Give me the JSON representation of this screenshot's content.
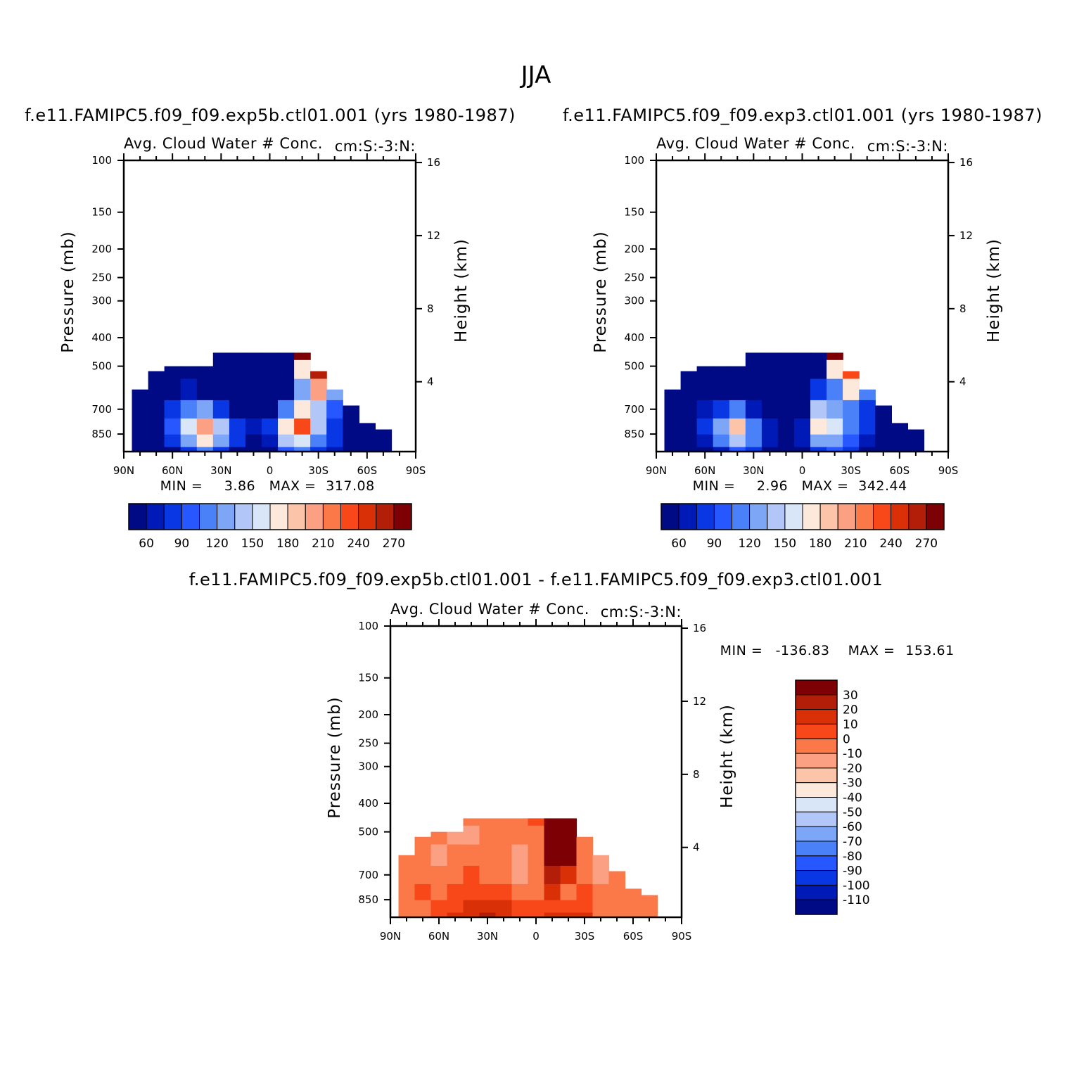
{
  "page": {
    "title": "JJA",
    "left_case_title": "f.e11.FAMIPC5.f09_f09.exp5b.ctl01.001 (yrs 1980-1987)",
    "right_case_title": "f.e11.FAMIPC5.f09_f09.exp3.ctl01.001 (yrs 1980-1987)",
    "diff_title": "f.e11.FAMIPC5.f09_f09.exp5b.ctl01.001 - f.e11.FAMIPC5.f09_f09.exp3.ctl01.001"
  },
  "colors": {
    "axis": "#000000",
    "background": "#ffffff",
    "palette": [
      "#000a85",
      "#001ab8",
      "#0a37e4",
      "#2757ff",
      "#4a80f8",
      "#7ea6f7",
      "#b2c7f7",
      "#d9e6f8",
      "#fde8dc",
      "#fcc5aa",
      "#fca084",
      "#fb7848",
      "#f8481a",
      "#d93008",
      "#b21e08",
      "#7d0004"
    ]
  },
  "chart_data": [
    {
      "id": "panel_exp5b",
      "type": "heatmap",
      "title": "Avg. Cloud Water # Conc.",
      "units": "cm:S:-3:N:",
      "xlabel": "",
      "ylabel": "Pressure (mb)",
      "ylabel_right": "Height (km)",
      "x_ticks": [
        "90N",
        "60N",
        "30N",
        "0",
        "30S",
        "60S",
        "90S"
      ],
      "x_lim": [
        90,
        -90
      ],
      "y_ticks": [
        100,
        150,
        200,
        250,
        300,
        400,
        500,
        700,
        850
      ],
      "y_lim": [
        100,
        975
      ],
      "y_scale": "log",
      "y_right_ticks": [
        16,
        12,
        8,
        4
      ],
      "min_label": "MIN =",
      "min_value": "3.86",
      "max_label": "MAX =",
      "max_value": "317.08",
      "colorbar_orientation": "horizontal",
      "colorbar_labels": [
        "60",
        "90",
        "120",
        "150",
        "180",
        "210",
        "240",
        "270"
      ],
      "field": {
        "lat": [
          90,
          80,
          70,
          60,
          50,
          40,
          30,
          20,
          10,
          0,
          -10,
          -20,
          -30,
          -40,
          -50,
          -60,
          -70,
          -80,
          -90
        ],
        "top_pressure": [
          null,
          600,
          520,
          500,
          500,
          500,
          450,
          450,
          450,
          450,
          450,
          450,
          520,
          600,
          680,
          780,
          820,
          null,
          null
        ],
        "columns": [
          [
            0,
            0,
            0,
            0,
            0,
            0,
            0
          ],
          [
            15,
            15,
            15,
            15,
            15,
            15,
            15
          ],
          [
            20,
            35,
            40,
            30,
            25,
            20,
            20
          ],
          [
            40,
            60,
            80,
            60,
            40,
            30,
            30
          ],
          [
            60,
            110,
            140,
            90,
            50,
            30,
            20
          ],
          [
            90,
            150,
            190,
            110,
            40,
            20,
            10
          ],
          [
            70,
            110,
            130,
            60,
            20,
            10,
            10
          ],
          [
            40,
            60,
            70,
            25,
            15,
            10,
            10
          ],
          [
            30,
            35,
            45,
            20,
            15,
            10,
            10
          ],
          [
            40,
            50,
            60,
            30,
            20,
            15,
            15
          ],
          [
            80,
            120,
            160,
            90,
            40,
            20,
            20
          ],
          [
            90,
            140,
            210,
            160,
            110,
            150,
            260
          ],
          [
            70,
            90,
            120,
            120,
            180,
            240,
            310
          ],
          [
            50,
            60,
            70,
            80,
            110,
            130,
            120
          ],
          [
            30,
            35,
            40,
            40,
            30,
            20,
            20
          ],
          [
            20,
            25,
            25,
            25,
            20,
            15,
            15
          ],
          [
            15,
            15,
            15,
            15,
            15,
            15,
            15
          ],
          [
            0,
            0,
            0,
            0,
            0,
            0,
            0
          ],
          [
            0,
            0,
            0,
            0,
            0,
            0,
            0
          ]
        ],
        "col_pressures": [
          975,
          900,
          800,
          700,
          600,
          500,
          450
        ]
      }
    },
    {
      "id": "panel_exp3",
      "type": "heatmap",
      "title": "Avg. Cloud Water # Conc.",
      "units": "cm:S:-3:N:",
      "xlabel": "",
      "ylabel": "Pressure (mb)",
      "ylabel_right": "Height (km)",
      "x_ticks": [
        "90N",
        "60N",
        "30N",
        "0",
        "30S",
        "60S",
        "90S"
      ],
      "x_lim": [
        90,
        -90
      ],
      "y_ticks": [
        100,
        150,
        200,
        250,
        300,
        400,
        500,
        700,
        850
      ],
      "y_lim": [
        100,
        975
      ],
      "y_scale": "log",
      "y_right_ticks": [
        16,
        12,
        8,
        4
      ],
      "min_label": "MIN =",
      "min_value": "2.96",
      "max_label": "MAX =",
      "max_value": "342.44",
      "colorbar_orientation": "horizontal",
      "colorbar_labels": [
        "60",
        "90",
        "120",
        "150",
        "180",
        "210",
        "240",
        "270"
      ],
      "field": {
        "lat": [
          90,
          80,
          70,
          60,
          50,
          40,
          30,
          20,
          10,
          0,
          -10,
          -20,
          -30,
          -40,
          -50,
          -60,
          -70,
          -80,
          -90
        ],
        "top_pressure": [
          null,
          600,
          520,
          500,
          500,
          500,
          450,
          450,
          450,
          450,
          450,
          450,
          520,
          600,
          680,
          780,
          820,
          null,
          null
        ],
        "columns": [
          [
            0,
            0,
            0,
            0,
            0,
            0,
            0
          ],
          [
            15,
            15,
            15,
            15,
            15,
            15,
            15
          ],
          [
            15,
            25,
            30,
            25,
            20,
            15,
            15
          ],
          [
            35,
            50,
            60,
            45,
            30,
            20,
            20
          ],
          [
            50,
            90,
            110,
            70,
            40,
            25,
            15
          ],
          [
            80,
            130,
            170,
            90,
            30,
            15,
            10
          ],
          [
            60,
            90,
            100,
            50,
            15,
            10,
            10
          ],
          [
            35,
            50,
            55,
            20,
            10,
            10,
            10
          ],
          [
            25,
            30,
            35,
            15,
            10,
            10,
            10
          ],
          [
            35,
            45,
            50,
            25,
            15,
            10,
            10
          ],
          [
            70,
            110,
            150,
            130,
            60,
            20,
            20
          ],
          [
            80,
            110,
            140,
            110,
            90,
            160,
            300
          ],
          [
            60,
            80,
            100,
            100,
            150,
            220,
            340
          ],
          [
            40,
            50,
            60,
            70,
            100,
            120,
            110
          ],
          [
            25,
            30,
            35,
            35,
            25,
            15,
            15
          ],
          [
            15,
            20,
            20,
            20,
            15,
            10,
            10
          ],
          [
            15,
            15,
            15,
            15,
            15,
            15,
            15
          ],
          [
            0,
            0,
            0,
            0,
            0,
            0,
            0
          ],
          [
            0,
            0,
            0,
            0,
            0,
            0,
            0
          ]
        ],
        "col_pressures": [
          975,
          900,
          800,
          700,
          600,
          500,
          450
        ]
      }
    },
    {
      "id": "panel_diff",
      "type": "heatmap",
      "title": "Avg. Cloud Water # Conc.",
      "units": "cm:S:-3:N:",
      "xlabel": "",
      "ylabel": "Pressure (mb)",
      "ylabel_right": "Height (km)",
      "x_ticks": [
        "90N",
        "60N",
        "30N",
        "0",
        "30S",
        "60S",
        "90S"
      ],
      "x_lim": [
        90,
        -90
      ],
      "y_ticks": [
        100,
        150,
        200,
        250,
        300,
        400,
        500,
        700,
        850
      ],
      "y_lim": [
        100,
        975
      ],
      "y_scale": "log",
      "y_right_ticks": [
        16,
        12,
        8,
        4
      ],
      "min_label": "MIN =",
      "min_value": "-136.83",
      "max_label": "MAX =",
      "max_value": "153.61",
      "colorbar_orientation": "vertical",
      "colorbar_labels": [
        "30",
        "20",
        "10",
        "0",
        "-10",
        "-20",
        "-30",
        "-40",
        "-50",
        "-60",
        "-70",
        "-80",
        "-90",
        "-100",
        "-110"
      ],
      "field": {
        "lat": [
          90,
          80,
          70,
          60,
          50,
          40,
          30,
          20,
          10,
          0,
          -10,
          -20,
          -30,
          -40,
          -50,
          -60,
          -70,
          -80,
          -90
        ],
        "top_pressure": [
          null,
          600,
          520,
          500,
          500,
          450,
          450,
          450,
          450,
          450,
          450,
          450,
          520,
          600,
          680,
          780,
          820,
          null,
          null
        ],
        "columns": [
          [
            0,
            0,
            0,
            0,
            0,
            0,
            0
          ],
          [
            -10,
            -10,
            -10,
            -10,
            -10,
            -10,
            -10
          ],
          [
            -5,
            -5,
            0,
            -5,
            -10,
            -5,
            -5
          ],
          [
            5,
            0,
            -5,
            -10,
            -15,
            -10,
            -10
          ],
          [
            10,
            5,
            0,
            -5,
            -10,
            -15,
            -10
          ],
          [
            15,
            10,
            5,
            0,
            -10,
            -15,
            -10
          ],
          [
            20,
            15,
            5,
            -5,
            -10,
            -10,
            -5
          ],
          [
            15,
            10,
            0,
            -5,
            -10,
            -10,
            -5
          ],
          [
            5,
            0,
            -10,
            -15,
            -20,
            -10,
            -5
          ],
          [
            5,
            0,
            -5,
            -10,
            -10,
            -5,
            0
          ],
          [
            10,
            5,
            10,
            20,
            30,
            40,
            45
          ],
          [
            10,
            0,
            -5,
            10,
            35,
            45,
            50
          ],
          [
            10,
            5,
            0,
            -5,
            -5,
            -10,
            -10
          ],
          [
            -5,
            -5,
            -10,
            -15,
            -20,
            -20,
            -20
          ],
          [
            -10,
            -10,
            -10,
            -10,
            -10,
            -10,
            -10
          ],
          [
            -10,
            -10,
            -10,
            -10,
            -10,
            -10,
            -10
          ],
          [
            -10,
            -10,
            -10,
            -10,
            -10,
            -10,
            -10
          ],
          [
            0,
            0,
            0,
            0,
            0,
            0,
            0
          ],
          [
            0,
            0,
            0,
            0,
            0,
            0,
            0
          ]
        ],
        "col_pressures": [
          975,
          900,
          800,
          700,
          600,
          500,
          450
        ]
      }
    }
  ]
}
